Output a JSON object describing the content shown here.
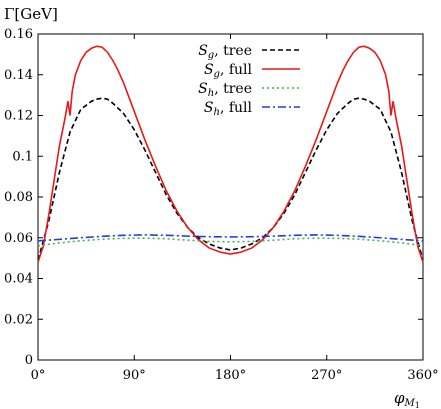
{
  "chart_data": {
    "type": "line",
    "ylabel": "Γ[GeV]",
    "xlabel": "φ_{M1}",
    "xlabel_main": "φ",
    "xlabel_sub": "M",
    "xlabel_subsub": "1",
    "xlim": [
      0,
      360
    ],
    "ylim": [
      0,
      0.16
    ],
    "xticks": [
      {
        "value": 0,
        "label": "0°"
      },
      {
        "value": 90,
        "label": "90°"
      },
      {
        "value": 180,
        "label": "180°"
      },
      {
        "value": 270,
        "label": "270°"
      },
      {
        "value": 360,
        "label": "360°"
      }
    ],
    "yticks": [
      {
        "value": 0,
        "label": "0"
      },
      {
        "value": 0.02,
        "label": "0.02"
      },
      {
        "value": 0.04,
        "label": "0.04"
      },
      {
        "value": 0.06,
        "label": "0.06"
      },
      {
        "value": 0.08,
        "label": "0.08"
      },
      {
        "value": 0.1,
        "label": "0.1"
      },
      {
        "value": 0.12,
        "label": "0.12"
      },
      {
        "value": 0.14,
        "label": "0.14"
      },
      {
        "value": 0.16,
        "label": "0.16"
      }
    ],
    "legend_position": "top-right",
    "series": [
      {
        "name": "S_g, tree",
        "symbol": "S",
        "subscript": "g",
        "suffix": ", tree",
        "color": "#000000",
        "dash": "5,3",
        "x": [
          0,
          10,
          20,
          30,
          40,
          50,
          55,
          60,
          65,
          70,
          80,
          90,
          100,
          110,
          120,
          130,
          140,
          150,
          160,
          170,
          180,
          190,
          200,
          210,
          220,
          230,
          240,
          250,
          260,
          270,
          280,
          290,
          295,
          300,
          305,
          310,
          320,
          330,
          340,
          350,
          360
        ],
        "y": [
          0.049,
          0.068,
          0.092,
          0.112,
          0.123,
          0.127,
          0.128,
          0.1285,
          0.128,
          0.126,
          0.121,
          0.113,
          0.103,
          0.092,
          0.081,
          0.072,
          0.065,
          0.06,
          0.057,
          0.055,
          0.054,
          0.055,
          0.057,
          0.06,
          0.065,
          0.072,
          0.081,
          0.092,
          0.103,
          0.113,
          0.121,
          0.126,
          0.128,
          0.1285,
          0.128,
          0.127,
          0.123,
          0.112,
          0.092,
          0.068,
          0.049
        ]
      },
      {
        "name": "S_g, full",
        "symbol": "S",
        "subscript": "g",
        "suffix": ", full",
        "color": "#e41a1c",
        "dash": "",
        "x": [
          0,
          5,
          10,
          15,
          20,
          25,
          28,
          30,
          32,
          35,
          40,
          45,
          50,
          55,
          60,
          65,
          70,
          75,
          80,
          90,
          100,
          110,
          120,
          130,
          140,
          150,
          160,
          170,
          175,
          180,
          185,
          190,
          200,
          210,
          220,
          230,
          240,
          250,
          260,
          270,
          280,
          285,
          290,
          295,
          300,
          305,
          310,
          315,
          320,
          325,
          328,
          330,
          332,
          335,
          340,
          345,
          350,
          355,
          360
        ],
        "y": [
          0.048,
          0.056,
          0.071,
          0.088,
          0.105,
          0.118,
          0.127,
          0.12,
          0.132,
          0.14,
          0.147,
          0.151,
          0.153,
          0.154,
          0.1535,
          0.151,
          0.147,
          0.142,
          0.136,
          0.122,
          0.108,
          0.095,
          0.083,
          0.073,
          0.065,
          0.059,
          0.055,
          0.053,
          0.0525,
          0.052,
          0.0525,
          0.053,
          0.055,
          0.059,
          0.065,
          0.073,
          0.083,
          0.095,
          0.108,
          0.122,
          0.136,
          0.142,
          0.147,
          0.151,
          0.1535,
          0.154,
          0.153,
          0.151,
          0.147,
          0.14,
          0.132,
          0.12,
          0.127,
          0.118,
          0.105,
          0.088,
          0.071,
          0.056,
          0.048
        ]
      },
      {
        "name": "S_h, tree",
        "symbol": "S",
        "subscript": "h",
        "suffix": ", tree",
        "color": "#4daf4a",
        "dash": "2,3",
        "x": [
          0,
          20,
          40,
          60,
          80,
          100,
          120,
          140,
          160,
          180,
          200,
          220,
          240,
          260,
          280,
          300,
          320,
          340,
          360
        ],
        "y": [
          0.056,
          0.0575,
          0.0585,
          0.0593,
          0.0597,
          0.0598,
          0.0595,
          0.0588,
          0.0582,
          0.058,
          0.0582,
          0.0588,
          0.0595,
          0.0598,
          0.0597,
          0.0593,
          0.0585,
          0.0575,
          0.056
        ]
      },
      {
        "name": "S_h, full",
        "symbol": "S",
        "subscript": "h",
        "suffix": ", full",
        "color": "#1f3fd8",
        "dash": "8,3,2,3",
        "x": [
          0,
          20,
          40,
          60,
          80,
          100,
          120,
          140,
          160,
          180,
          200,
          220,
          240,
          260,
          280,
          300,
          320,
          340,
          360
        ],
        "y": [
          0.0585,
          0.0592,
          0.06,
          0.0607,
          0.0612,
          0.0614,
          0.0612,
          0.0608,
          0.0605,
          0.0604,
          0.0605,
          0.0608,
          0.0612,
          0.0614,
          0.0612,
          0.0607,
          0.06,
          0.0592,
          0.0585
        ]
      }
    ]
  }
}
